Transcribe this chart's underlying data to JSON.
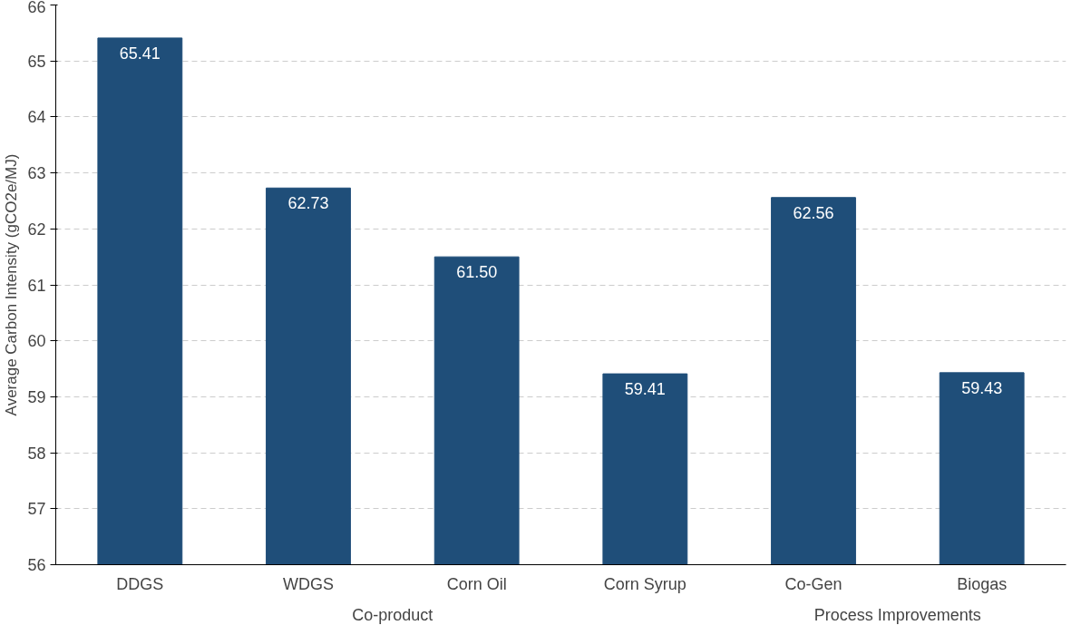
{
  "chart_data": {
    "type": "bar",
    "ylabel": "Average Carbon Intensity (gCO2e/MJ)",
    "categories": [
      "DDGS",
      "WDGS",
      "Corn Oil",
      "Corn Syrup",
      "Co-Gen",
      "Biogas"
    ],
    "values": [
      65.41,
      62.73,
      61.5,
      59.41,
      62.56,
      59.43
    ],
    "value_labels": [
      "65.41",
      "62.73",
      "61.50",
      "59.41",
      "62.56",
      "59.43"
    ],
    "color": "#1f4e79",
    "ylim": [
      56,
      66
    ],
    "yticks": [
      56,
      57,
      58,
      59,
      60,
      61,
      62,
      63,
      64,
      65,
      66
    ],
    "grid": "y",
    "annotations": [
      "Co-product",
      "Process Improvements"
    ]
  }
}
